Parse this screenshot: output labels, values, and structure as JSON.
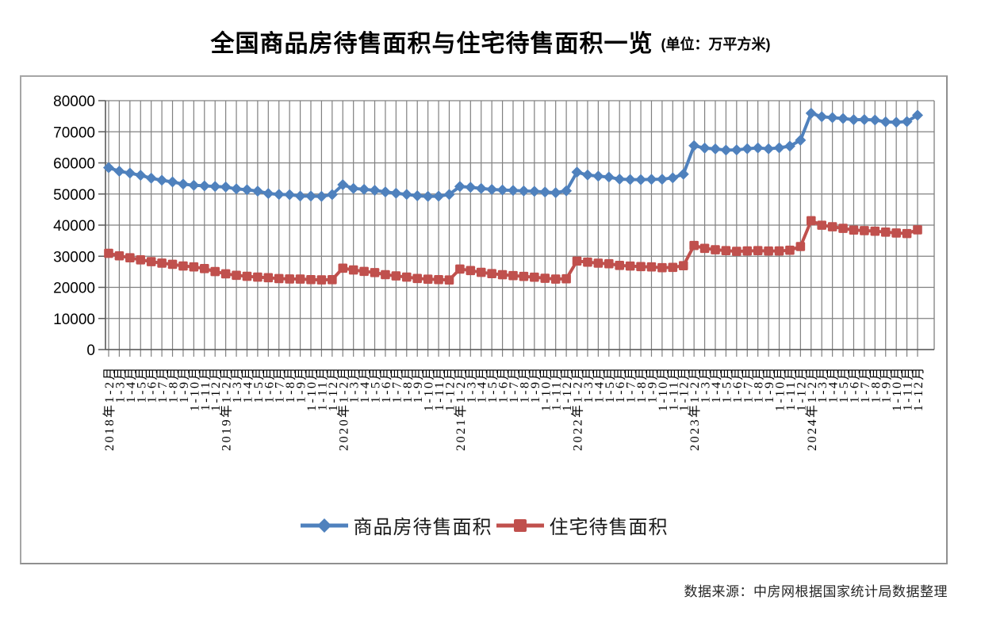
{
  "title": {
    "text": "全国商品房待售面积与住宅待售面积一览",
    "unit": "(单位：万平方米)"
  },
  "source_note": "数据来源：中房网根据国家统计局数据整理",
  "chart_data": {
    "type": "line",
    "title": "全国商品房待售面积与住宅待售面积一览",
    "unit": "万平方米",
    "ylabel": "",
    "xlabel": "",
    "ylim": [
      0,
      80000
    ],
    "yticks": [
      0,
      10000,
      20000,
      30000,
      40000,
      50000,
      60000,
      70000,
      80000
    ],
    "grid": "both",
    "gridline_color": "#808080",
    "legend_position": "bottom",
    "categories": [
      "2018年1-2月",
      "1-3月",
      "1-4月",
      "1-5月",
      "1-6月",
      "1-7月",
      "1-8月",
      "1-9月",
      "1-10月",
      "1-11月",
      "1-12月",
      "2019年1-2月",
      "1-3月",
      "1-4月",
      "1-5月",
      "1-6月",
      "1-7月",
      "1-8月",
      "1-9月",
      "1-10月",
      "1-11月",
      "1-12月",
      "2020年1-2月",
      "1-3月",
      "1-4月",
      "1-5月",
      "1-6月",
      "1-7月",
      "1-8月",
      "1-9月",
      "1-10月",
      "1-11月",
      "1-12月",
      "2021年1-2月",
      "1-3月",
      "1-4月",
      "1-5月",
      "1-6月",
      "1-7月",
      "1-8月",
      "1-9月",
      "1-10月",
      "1-11月",
      "1-12月",
      "2022年1-2月",
      "1-3月",
      "1-4月",
      "1-5月",
      "1-6月",
      "1-7月",
      "1-8月",
      "1-9月",
      "1-10月",
      "1-11月",
      "1-12月",
      "2023年1-2月",
      "1-3月",
      "1-4月",
      "1-5月",
      "1-6月",
      "1-7月",
      "1-8月",
      "1-9月",
      "1-10月",
      "1-11月",
      "1-12月",
      "2024年1-2月",
      "1-3月",
      "1-4月",
      "1-5月",
      "1-6月",
      "1-7月",
      "1-8月",
      "1-9月",
      "1-10月",
      "1-11月",
      "1-12月"
    ],
    "series": [
      {
        "name": "商品房待售面积",
        "color": "#4F81BD",
        "marker": "diamond",
        "values": [
          58468,
          57329,
          56708,
          56010,
          55083,
          54428,
          53873,
          53191,
          52789,
          52627,
          52414,
          52251,
          51646,
          51380,
          50928,
          50162,
          49876,
          49784,
          49346,
          49323,
          49221,
          49821,
          52983,
          51779,
          51512,
          51184,
          50662,
          50254,
          49864,
          49419,
          49239,
          49287,
          49850,
          52425,
          52159,
          51785,
          51469,
          51290,
          51145,
          50980,
          50852,
          50646,
          50421,
          51023,
          57026,
          56113,
          55735,
          55433,
          54784,
          54655,
          54605,
          54703,
          54734,
          55203,
          56366,
          65528,
          64770,
          64487,
          64120,
          64159,
          64564,
          64795,
          64537,
          64835,
          65385,
          67295,
          75969,
          74833,
          74553,
          74256,
          73894,
          73926,
          73784,
          73177,
          73057,
          73286,
          75327
        ]
      },
      {
        "name": "住宅待售面积",
        "color": "#C0504D",
        "marker": "square",
        "values": [
          30930,
          30130,
          29507,
          28848,
          28259,
          27781,
          27396,
          26869,
          26570,
          26035,
          25091,
          24347,
          23870,
          23539,
          23285,
          23093,
          22818,
          22699,
          22660,
          22481,
          22403,
          22473,
          26171,
          25580,
          25125,
          24743,
          24077,
          23680,
          23307,
          22856,
          22634,
          22482,
          22379,
          25882,
          25401,
          24821,
          24402,
          24064,
          23772,
          23514,
          23269,
          22919,
          22654,
          22761,
          28437,
          28108,
          27771,
          27586,
          27049,
          26846,
          26664,
          26576,
          26318,
          26424,
          26947,
          33452,
          32526,
          32096,
          31810,
          31566,
          31703,
          31788,
          31688,
          31693,
          31925,
          33119,
          41414,
          39968,
          39466,
          38970,
          38407,
          38237,
          38049,
          37756,
          37475,
          37290,
          38484
        ]
      }
    ]
  }
}
